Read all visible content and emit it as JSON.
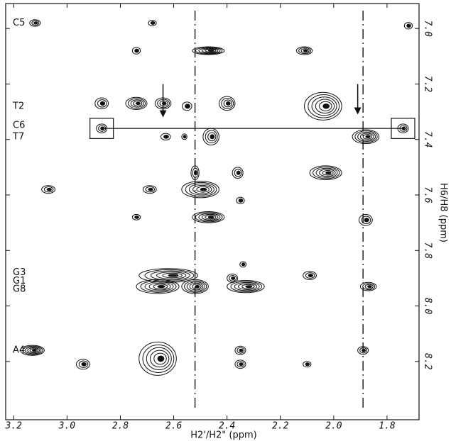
{
  "chart_data": {
    "type": "contour",
    "xlabel": "H2'/H2\" (ppm)",
    "ylabel": "H6/H8 (ppm)",
    "xlim": [
      3.23,
      1.68
    ],
    "ylim": [
      6.91,
      8.41
    ],
    "xticks": [
      3.2,
      {
        "value": 3,
        "label": "3.0"
      },
      2.8,
      2.6,
      2.4,
      2.2,
      {
        "value": 2,
        "label": "2.0"
      },
      1.8
    ],
    "yticks": [
      {
        "value": 7,
        "label": "7.0"
      },
      7.2,
      7.4,
      7.6,
      7.8,
      {
        "value": 8,
        "label": "8.0"
      },
      8.2
    ],
    "color": "#111111",
    "row_labels": [
      {
        "text": "C5",
        "y": 6.98
      },
      {
        "text": "T2",
        "y": 7.28
      },
      {
        "text": "C6",
        "y": 7.35
      },
      {
        "text": "T7",
        "y": 7.39
      },
      {
        "text": "G3",
        "y": 7.88
      },
      {
        "text": "G1",
        "y": 7.91
      },
      {
        "text": "G8",
        "y": 7.94
      },
      {
        "text": "A4",
        "y": 8.16
      }
    ],
    "dashed_lines_x": [
      2.52,
      1.89
    ],
    "connector": {
      "x1": 2.87,
      "x2": 1.74,
      "y": 7.36
    },
    "arrows": [
      {
        "x": 2.64,
        "from": 7.2,
        "to": 7.32
      },
      {
        "x": 1.91,
        "from": 7.2,
        "to": 7.31
      }
    ],
    "peaks": [
      {
        "x": 3.12,
        "y": 6.98,
        "rx": 0.02,
        "ry": 0.012
      },
      {
        "x": 2.68,
        "y": 6.98,
        "rx": 0.015,
        "ry": 0.01
      },
      {
        "x": 1.72,
        "y": 6.99,
        "rx": 0.015,
        "ry": 0.012
      },
      {
        "x": 2.74,
        "y": 7.08,
        "rx": 0.015,
        "ry": 0.012
      },
      {
        "x": 2.47,
        "y": 7.08,
        "rx": 0.06,
        "ry": 0.014
      },
      {
        "x": 2.11,
        "y": 7.08,
        "rx": 0.03,
        "ry": 0.014
      },
      {
        "x": 2.87,
        "y": 7.27,
        "rx": 0.025,
        "ry": 0.02
      },
      {
        "x": 2.74,
        "y": 7.27,
        "rx": 0.04,
        "ry": 0.022
      },
      {
        "x": 2.64,
        "y": 7.27,
        "rx": 0.03,
        "ry": 0.02
      },
      {
        "x": 2.55,
        "y": 7.28,
        "rx": 0.018,
        "ry": 0.015
      },
      {
        "x": 2.4,
        "y": 7.27,
        "rx": 0.03,
        "ry": 0.025
      },
      {
        "x": 2.04,
        "y": 7.28,
        "rx": 0.07,
        "ry": 0.05
      },
      {
        "x": 2.87,
        "y": 7.36,
        "rx": 0.02,
        "ry": 0.016,
        "boxed": true
      },
      {
        "x": 2.63,
        "y": 7.39,
        "rx": 0.018,
        "ry": 0.012
      },
      {
        "x": 2.56,
        "y": 7.39,
        "rx": 0.01,
        "ry": 0.01
      },
      {
        "x": 2.46,
        "y": 7.39,
        "rx": 0.03,
        "ry": 0.03
      },
      {
        "x": 1.88,
        "y": 7.39,
        "rx": 0.05,
        "ry": 0.025
      },
      {
        "x": 1.74,
        "y": 7.36,
        "rx": 0.02,
        "ry": 0.016,
        "boxed": true
      },
      {
        "x": 2.52,
        "y": 7.52,
        "rx": 0.015,
        "ry": 0.025
      },
      {
        "x": 2.36,
        "y": 7.52,
        "rx": 0.02,
        "ry": 0.02
      },
      {
        "x": 2.03,
        "y": 7.52,
        "rx": 0.06,
        "ry": 0.025
      },
      {
        "x": 3.07,
        "y": 7.58,
        "rx": 0.025,
        "ry": 0.014
      },
      {
        "x": 2.69,
        "y": 7.58,
        "rx": 0.025,
        "ry": 0.014
      },
      {
        "x": 2.5,
        "y": 7.58,
        "rx": 0.07,
        "ry": 0.03
      },
      {
        "x": 2.35,
        "y": 7.62,
        "rx": 0.015,
        "ry": 0.012
      },
      {
        "x": 1.88,
        "y": 7.69,
        "rx": 0.025,
        "ry": 0.02
      },
      {
        "x": 2.74,
        "y": 7.68,
        "rx": 0.015,
        "ry": 0.01
      },
      {
        "x": 2.47,
        "y": 7.68,
        "rx": 0.06,
        "ry": 0.02
      },
      {
        "x": 2.62,
        "y": 7.89,
        "rx": 0.11,
        "ry": 0.025
      },
      {
        "x": 2.66,
        "y": 7.93,
        "rx": 0.08,
        "ry": 0.025
      },
      {
        "x": 2.52,
        "y": 7.93,
        "rx": 0.05,
        "ry": 0.025
      },
      {
        "x": 2.33,
        "y": 7.93,
        "rx": 0.07,
        "ry": 0.022
      },
      {
        "x": 2.38,
        "y": 7.9,
        "rx": 0.02,
        "ry": 0.015
      },
      {
        "x": 2.09,
        "y": 7.89,
        "rx": 0.025,
        "ry": 0.015
      },
      {
        "x": 1.87,
        "y": 7.93,
        "rx": 0.03,
        "ry": 0.015
      },
      {
        "x": 2.34,
        "y": 7.85,
        "rx": 0.012,
        "ry": 0.01
      },
      {
        "x": 3.13,
        "y": 8.16,
        "rx": 0.045,
        "ry": 0.018
      },
      {
        "x": 2.94,
        "y": 8.21,
        "rx": 0.025,
        "ry": 0.018
      },
      {
        "x": 2.66,
        "y": 8.19,
        "rx": 0.07,
        "ry": 0.06
      },
      {
        "x": 2.35,
        "y": 8.16,
        "rx": 0.02,
        "ry": 0.015
      },
      {
        "x": 2.35,
        "y": 8.21,
        "rx": 0.02,
        "ry": 0.015
      },
      {
        "x": 2.1,
        "y": 8.21,
        "rx": 0.015,
        "ry": 0.01
      },
      {
        "x": 1.89,
        "y": 8.16,
        "rx": 0.02,
        "ry": 0.014
      }
    ]
  }
}
